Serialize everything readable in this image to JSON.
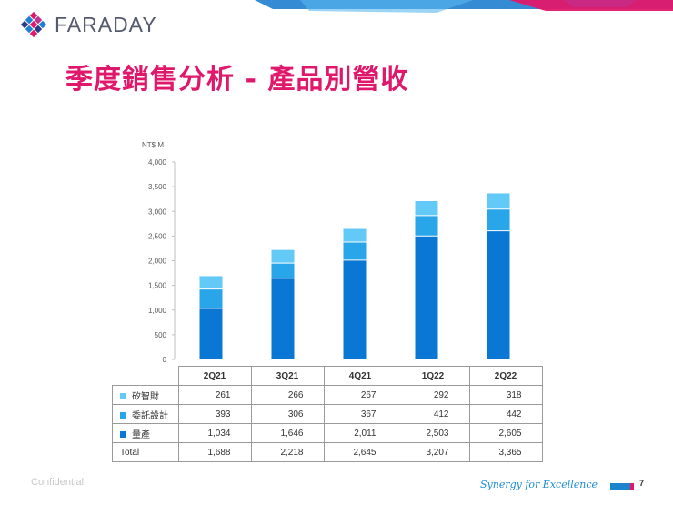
{
  "header": {
    "logo_text": "FARADAY",
    "title": "季度銷售分析 - 產品別營收"
  },
  "chart_data": {
    "type": "bar",
    "stacked": true,
    "unit_label": "NT$ M",
    "categories": [
      "2Q21",
      "3Q21",
      "4Q21",
      "1Q22",
      "2Q22"
    ],
    "series": [
      {
        "name": "量產",
        "color": "#0a77d4",
        "values": [
          1034,
          1646,
          2011,
          2503,
          2605
        ]
      },
      {
        "name": "委託設計",
        "color": "#29a5ea",
        "values": [
          393,
          306,
          367,
          412,
          442
        ]
      },
      {
        "name": "矽智財",
        "color": "#63c9f6",
        "values": [
          261,
          266,
          267,
          292,
          318
        ]
      }
    ],
    "y_ticks": [
      "0",
      "500",
      "1,000",
      "1,500",
      "2,000",
      "2,500",
      "3,000",
      "3,500",
      "4,000"
    ],
    "ylim": [
      0,
      4000
    ],
    "table": {
      "rows": [
        {
          "label": "矽智財",
          "color": "#63c9f6",
          "values": [
            "261",
            "266",
            "267",
            "292",
            "318"
          ]
        },
        {
          "label": "委託設計",
          "color": "#29a5ea",
          "values": [
            "393",
            "306",
            "367",
            "412",
            "442"
          ]
        },
        {
          "label": "量產",
          "color": "#0a77d4",
          "values": [
            "1,034",
            "1,646",
            "2,011",
            "2,503",
            "2,605"
          ]
        },
        {
          "label": "Total",
          "color": "",
          "values": [
            "1,688",
            "2,218",
            "2,645",
            "3,207",
            "3,365"
          ]
        }
      ]
    }
  },
  "footer": {
    "confidential": "Confidential",
    "slogan": "Synergy for Excellence",
    "page_number": "7"
  }
}
